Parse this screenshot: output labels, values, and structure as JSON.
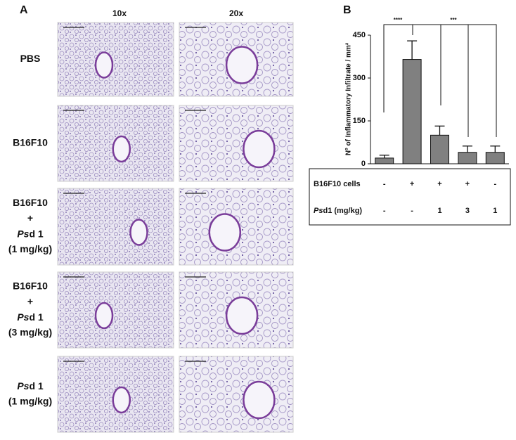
{
  "panel_a": {
    "label": "A",
    "columns": [
      "10x",
      "20x"
    ],
    "rows": [
      [
        "PBS"
      ],
      [
        "B16F10"
      ],
      [
        "B16F10",
        "+",
        [
          "Ps",
          "d 1"
        ],
        "(1 mg/kg)"
      ],
      [
        "B16F10",
        "+",
        [
          "Ps",
          "d 1"
        ],
        "(3 mg/kg)"
      ],
      [
        [
          "Ps",
          "d 1"
        ],
        "(1 mg/kg)"
      ]
    ]
  },
  "chart_data": {
    "type": "bar",
    "panel_label": "B",
    "y_label": "Nº of Inflammatory Infiltrate / mm²",
    "categories": [
      null,
      null,
      null,
      null,
      null
    ],
    "values": [
      20,
      365,
      100,
      40,
      40
    ],
    "errors": [
      10,
      65,
      32,
      22,
      22
    ],
    "color": "#808080",
    "ylim": [
      0,
      450
    ],
    "yticks": [
      0,
      150,
      300,
      450
    ],
    "annotations": [
      "****",
      "***"
    ],
    "table": [
      {
        "label": [
          [
            "B16F10 cells"
          ]
        ],
        "cells": [
          "-",
          "+",
          "+",
          "+",
          "-"
        ]
      },
      {
        "label": [
          [
            "Ps",
            "d1 (mg/kg)"
          ]
        ],
        "cells": [
          "-",
          "-",
          "1",
          "3",
          "1"
        ]
      }
    ]
  }
}
